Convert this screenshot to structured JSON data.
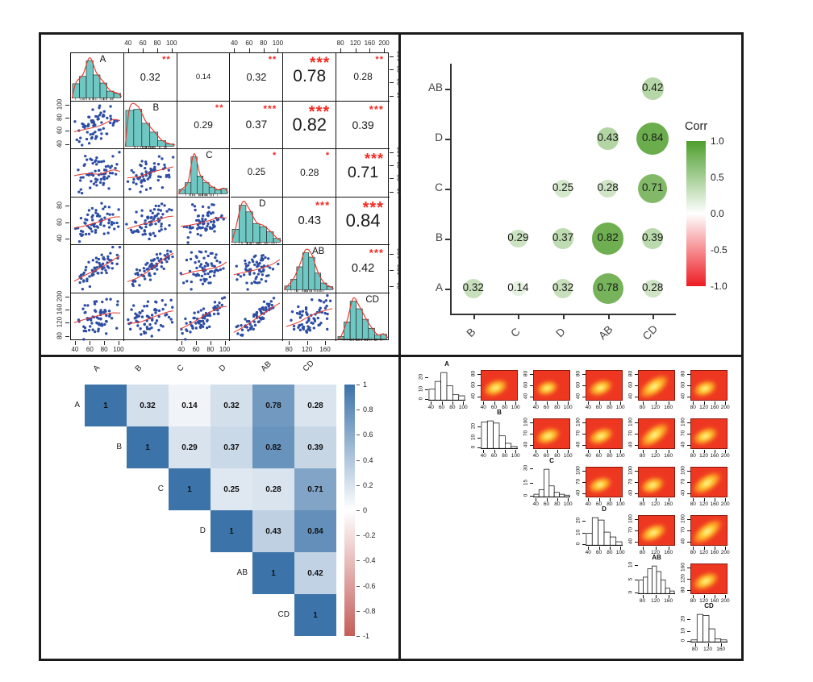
{
  "variables": [
    "A",
    "B",
    "C",
    "D",
    "AB",
    "CD"
  ],
  "colors": {
    "panel_border": "#1a1a1a",
    "hist_fill": "#6ec7c2",
    "density_line": "#e8392e",
    "scatter_point": "#2d4da4",
    "star_red": "#f5281e",
    "bubble_green": "#4f9d2b",
    "legend_green": "#4d9e2d",
    "legend_red": "#ee1c24",
    "heatmap_blue": "#3c73a8",
    "heatmap_red": "#c45d58",
    "heat_bg": "#ee3721",
    "axis_text": "#333333"
  },
  "chart_data": [
    {
      "id": "pairs-correlation-matrix",
      "type": "scatter",
      "description": "Scatterplot matrix: diagonal teal histograms with red density curves, lower-triangle blue scatterplots with red smooth fit, upper-triangle correlation coefficients with red significance stars",
      "variables": [
        "A",
        "B",
        "C",
        "D",
        "AB",
        "CD"
      ],
      "correlations": [
        {
          "pair": "A-B",
          "r": 0.32,
          "stars": "**"
        },
        {
          "pair": "A-C",
          "r": 0.14,
          "stars": ""
        },
        {
          "pair": "A-D",
          "r": 0.32,
          "stars": "**"
        },
        {
          "pair": "A-AB",
          "r": 0.78,
          "stars": "***"
        },
        {
          "pair": "A-CD",
          "r": 0.28,
          "stars": "**"
        },
        {
          "pair": "B-C",
          "r": 0.29,
          "stars": "**"
        },
        {
          "pair": "B-D",
          "r": 0.37,
          "stars": "***"
        },
        {
          "pair": "B-AB",
          "r": 0.82,
          "stars": "***"
        },
        {
          "pair": "B-CD",
          "r": 0.39,
          "stars": "***"
        },
        {
          "pair": "C-D",
          "r": 0.25,
          "stars": "*"
        },
        {
          "pair": "C-AB",
          "r": 0.28,
          "stars": "*"
        },
        {
          "pair": "C-CD",
          "r": 0.71,
          "stars": "***"
        },
        {
          "pair": "D-AB",
          "r": 0.43,
          "stars": "***"
        },
        {
          "pair": "D-CD",
          "r": 0.84,
          "stars": "***"
        },
        {
          "pair": "AB-CD",
          "r": 0.42,
          "stars": "***"
        }
      ],
      "diagonal_histograms": {
        "A": [
          0.38,
          0.58,
          1.0,
          0.62,
          0.4,
          0.18,
          0.12
        ],
        "B": [
          0.97,
          1.0,
          0.62,
          0.38,
          0.15,
          0.06
        ],
        "C": [
          0.12,
          0.3,
          1.0,
          0.48,
          0.3,
          0.18,
          0.1,
          0.14
        ],
        "D": [
          0.35,
          1.0,
          0.82,
          0.5,
          0.42,
          0.28,
          0.1
        ],
        "AB": [
          0.1,
          0.28,
          0.62,
          1.0,
          0.88,
          0.45,
          0.18,
          0.08
        ],
        "CD": [
          0.06,
          0.45,
          1.0,
          0.8,
          0.52,
          0.28,
          0.1,
          0.12
        ]
      },
      "axes": {
        "top": [
          {
            "col": 1,
            "ticks": [
              "40",
              "60",
              "80",
              "100"
            ]
          },
          {
            "col": 3,
            "ticks": [
              "40",
              "60",
              "80",
              "100"
            ]
          },
          {
            "col": 5,
            "ticks": [
              "80",
              "120",
              "160",
              "200"
            ]
          }
        ],
        "bottom": [
          {
            "col": 0,
            "ticks": [
              "40",
              "60",
              "80",
              "100"
            ]
          },
          {
            "col": 2,
            "ticks": [
              "40",
              "60",
              "80",
              "100"
            ]
          },
          {
            "col": 4,
            "ticks": [
              "80",
              "120",
              "160"
            ]
          }
        ],
        "left": [
          {
            "row": 1,
            "ticks": [
              "40",
              "60",
              "80",
              "100"
            ]
          },
          {
            "row": 3,
            "ticks": [
              "40",
              "60",
              "80"
            ]
          },
          {
            "row": 5,
            "ticks": [
              "80",
              "120",
              "160",
              "200"
            ]
          }
        ],
        "right": [
          {
            "row": 0,
            "ticks": [
              "40",
              "60",
              "80",
              "100"
            ]
          },
          {
            "row": 2,
            "ticks": [
              "40",
              "60",
              "80",
              "100"
            ]
          },
          {
            "row": 4,
            "ticks": [
              "80",
              "120",
              "160"
            ]
          }
        ]
      }
    },
    {
      "id": "bubble-correlation-matrix",
      "type": "scatter",
      "description": "Bubble correlation matrix; circle size and green shade scale with correlation value",
      "y_categories_top_to_bottom": [
        "AB",
        "D",
        "C",
        "B",
        "A"
      ],
      "x_categories": [
        "B",
        "C",
        "D",
        "AB",
        "CD"
      ],
      "points": [
        {
          "y": "A",
          "x": "B",
          "r": 0.32
        },
        {
          "y": "A",
          "x": "C",
          "r": 0.14
        },
        {
          "y": "A",
          "x": "D",
          "r": 0.32
        },
        {
          "y": "A",
          "x": "AB",
          "r": 0.78
        },
        {
          "y": "A",
          "x": "CD",
          "r": 0.28
        },
        {
          "y": "B",
          "x": "C",
          "r": 0.29
        },
        {
          "y": "B",
          "x": "D",
          "r": 0.37
        },
        {
          "y": "B",
          "x": "AB",
          "r": 0.82
        },
        {
          "y": "B",
          "x": "CD",
          "r": 0.39
        },
        {
          "y": "C",
          "x": "D",
          "r": 0.25
        },
        {
          "y": "C",
          "x": "AB",
          "r": 0.28
        },
        {
          "y": "C",
          "x": "CD",
          "r": 0.71
        },
        {
          "y": "D",
          "x": "AB",
          "r": 0.43
        },
        {
          "y": "D",
          "x": "CD",
          "r": 0.84
        },
        {
          "y": "AB",
          "x": "CD",
          "r": 0.42
        }
      ],
      "legend": {
        "title": "Corr",
        "ticks": [
          "1.0",
          "0.5",
          "0.0",
          "-0.5",
          "-1.0"
        ],
        "range": [
          -1,
          1
        ]
      }
    },
    {
      "id": "triangular-heatmap",
      "type": "heatmap",
      "description": "Upper-triangular correlation heatmap on blue-white-red scale with colorbar",
      "labels": [
        "A",
        "B",
        "C",
        "D",
        "AB",
        "CD"
      ],
      "rows": [
        [
          1,
          0.32,
          0.14,
          0.32,
          0.78,
          0.28
        ],
        [
          null,
          1,
          0.29,
          0.37,
          0.82,
          0.39
        ],
        [
          null,
          null,
          1,
          0.25,
          0.28,
          0.71
        ],
        [
          null,
          null,
          null,
          1,
          0.43,
          0.84
        ],
        [
          null,
          null,
          null,
          null,
          1,
          0.42
        ],
        [
          null,
          null,
          null,
          null,
          null,
          1
        ]
      ],
      "colorbar_ticks": [
        "1",
        "0.8",
        "0.6",
        "0.4",
        "0.2",
        "0",
        "-0.2",
        "-0.4",
        "-0.6",
        "-0.8",
        "-1"
      ]
    },
    {
      "id": "density-pairs-matrix",
      "type": "heatmap",
      "description": "Pairs panel: diagonal white histograms, upper-triangle 2D kernel-density heat images (red-yellow-white)",
      "variables": [
        "A",
        "B",
        "C",
        "D",
        "AB",
        "CD"
      ],
      "histograms": {
        "A": {
          "y_ticks": [
            "0",
            "10",
            "20"
          ],
          "x_ticks": [
            "40",
            "60",
            "80",
            "100"
          ],
          "bars": [
            10,
            17,
            25,
            13,
            5,
            4
          ]
        },
        "B": {
          "y_ticks": [
            "0",
            "10",
            "20"
          ],
          "x_ticks": [
            "40",
            "60",
            "80",
            "100"
          ],
          "bars": [
            25,
            26,
            24,
            12,
            5,
            2
          ]
        },
        "C": {
          "y_ticks": [
            "0",
            "15",
            "30"
          ],
          "x_ticks": [
            "40",
            "60",
            "80",
            "100"
          ],
          "bars": [
            3,
            8,
            30,
            12,
            5,
            3,
            2
          ]
        },
        "D": {
          "y_ticks": [
            "0",
            "10",
            "20"
          ],
          "x_ticks": [
            "40",
            "60",
            "80",
            "100"
          ],
          "bars": [
            10,
            23,
            21,
            11,
            7,
            3
          ]
        },
        "AB": {
          "y_ticks": [
            "0",
            "5",
            "10"
          ],
          "x_ticks": [
            "80",
            "120",
            "160"
          ],
          "bars": [
            5,
            6,
            9,
            10,
            8,
            5,
            2,
            1
          ]
        },
        "CD": {
          "y_ticks": [
            "0",
            "10",
            "20"
          ],
          "x_ticks": [
            "80",
            "120",
            "160"
          ],
          "bars": [
            2,
            25,
            24,
            12,
            3,
            2
          ]
        }
      },
      "row_y_ticks": {
        "A": [
          "40",
          "60",
          "80"
        ],
        "B": [
          "40",
          "70",
          "100"
        ],
        "C": [
          "40",
          "70",
          "100"
        ],
        "D": [
          "40",
          "70",
          "100"
        ],
        "AB": [
          "80",
          "120",
          "160"
        ]
      },
      "col_x_ticks": {
        "B": [
          "40",
          "60",
          "80",
          "100"
        ],
        "C": [
          "40",
          "60",
          "80",
          "100"
        ],
        "D": [
          "40",
          "60",
          "80",
          "100"
        ],
        "AB": [
          "80",
          "120",
          "160"
        ],
        "CD": [
          "80",
          "120",
          "160",
          "200"
        ]
      }
    }
  ]
}
